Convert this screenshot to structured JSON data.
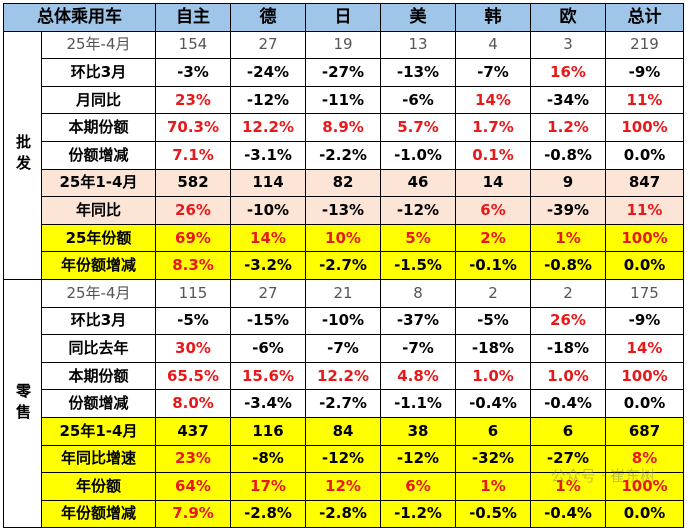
{
  "header": [
    "总体乘用车",
    "自主",
    "德",
    "日",
    "美",
    "韩",
    "欧",
    "总计"
  ],
  "groups": [
    {
      "label": "批发",
      "rows": [
        {
          "label": "25年-4月",
          "style": "plain",
          "cells": [
            [
              "154",
              "n"
            ],
            [
              "27",
              "n"
            ],
            [
              "19",
              "n"
            ],
            [
              "13",
              "n"
            ],
            [
              "4",
              "n"
            ],
            [
              "3",
              "n"
            ],
            [
              "219",
              "n"
            ]
          ]
        },
        {
          "label": "环比3月",
          "style": "",
          "cells": [
            [
              "-3%",
              "k"
            ],
            [
              "-24%",
              "k"
            ],
            [
              "-27%",
              "k"
            ],
            [
              "-13%",
              "k"
            ],
            [
              "-7%",
              "k"
            ],
            [
              "16%",
              "r"
            ],
            [
              "-9%",
              "k"
            ]
          ]
        },
        {
          "label": "月同比",
          "style": "",
          "cells": [
            [
              "23%",
              "r"
            ],
            [
              "-12%",
              "k"
            ],
            [
              "-11%",
              "k"
            ],
            [
              "-6%",
              "k"
            ],
            [
              "14%",
              "r"
            ],
            [
              "-34%",
              "k"
            ],
            [
              "11%",
              "r"
            ]
          ]
        },
        {
          "label": "本期份额",
          "style": "",
          "cells": [
            [
              "70.3%",
              "r"
            ],
            [
              "12.2%",
              "r"
            ],
            [
              "8.9%",
              "r"
            ],
            [
              "5.7%",
              "r"
            ],
            [
              "1.7%",
              "r"
            ],
            [
              "1.2%",
              "r"
            ],
            [
              "100%",
              "r"
            ]
          ]
        },
        {
          "label": "份额增减",
          "style": "",
          "cells": [
            [
              "7.1%",
              "r"
            ],
            [
              "-3.1%",
              "k"
            ],
            [
              "-2.2%",
              "k"
            ],
            [
              "-1.0%",
              "k"
            ],
            [
              "0.1%",
              "r"
            ],
            [
              "-0.8%",
              "k"
            ],
            [
              "0.0%",
              "k"
            ]
          ]
        },
        {
          "label": "25年1-4月",
          "style": "pink",
          "cells": [
            [
              "582",
              "k"
            ],
            [
              "114",
              "k"
            ],
            [
              "82",
              "k"
            ],
            [
              "46",
              "k"
            ],
            [
              "14",
              "k"
            ],
            [
              "9",
              "k"
            ],
            [
              "847",
              "k"
            ]
          ]
        },
        {
          "label": "年同比",
          "style": "pink",
          "cells": [
            [
              "26%",
              "r"
            ],
            [
              "-10%",
              "k"
            ],
            [
              "-13%",
              "k"
            ],
            [
              "-12%",
              "k"
            ],
            [
              "6%",
              "r"
            ],
            [
              "-39%",
              "k"
            ],
            [
              "11%",
              "r"
            ]
          ]
        },
        {
          "label": "25年份额",
          "style": "yellow",
          "cells": [
            [
              "69%",
              "r"
            ],
            [
              "14%",
              "r"
            ],
            [
              "10%",
              "r"
            ],
            [
              "5%",
              "r"
            ],
            [
              "2%",
              "r"
            ],
            [
              "1%",
              "r"
            ],
            [
              "100%",
              "r"
            ]
          ]
        },
        {
          "label": "年份额增减",
          "style": "yellow",
          "cells": [
            [
              "8.3%",
              "r"
            ],
            [
              "-3.2%",
              "k"
            ],
            [
              "-2.7%",
              "k"
            ],
            [
              "-1.5%",
              "k"
            ],
            [
              "-0.1%",
              "k"
            ],
            [
              "-0.8%",
              "k"
            ],
            [
              "0.0%",
              "k"
            ]
          ]
        }
      ]
    },
    {
      "label": "零售",
      "rows": [
        {
          "label": "25年-4月",
          "style": "plain",
          "cells": [
            [
              "115",
              "n"
            ],
            [
              "27",
              "n"
            ],
            [
              "21",
              "n"
            ],
            [
              "8",
              "n"
            ],
            [
              "2",
              "n"
            ],
            [
              "2",
              "n"
            ],
            [
              "175",
              "n"
            ]
          ]
        },
        {
          "label": "环比3月",
          "style": "",
          "cells": [
            [
              "-5%",
              "k"
            ],
            [
              "-15%",
              "k"
            ],
            [
              "-10%",
              "k"
            ],
            [
              "-37%",
              "k"
            ],
            [
              "-5%",
              "k"
            ],
            [
              "26%",
              "r"
            ],
            [
              "-9%",
              "k"
            ]
          ]
        },
        {
          "label": "同比去年",
          "style": "",
          "cells": [
            [
              "30%",
              "r"
            ],
            [
              "-6%",
              "k"
            ],
            [
              "-7%",
              "k"
            ],
            [
              "-7%",
              "k"
            ],
            [
              "-18%",
              "k"
            ],
            [
              "-18%",
              "k"
            ],
            [
              "14%",
              "r"
            ]
          ]
        },
        {
          "label": "本期份额",
          "style": "",
          "cells": [
            [
              "65.5%",
              "r"
            ],
            [
              "15.6%",
              "r"
            ],
            [
              "12.2%",
              "r"
            ],
            [
              "4.8%",
              "r"
            ],
            [
              "1.0%",
              "r"
            ],
            [
              "1.0%",
              "r"
            ],
            [
              "100%",
              "r"
            ]
          ]
        },
        {
          "label": "份额增减",
          "style": "",
          "cells": [
            [
              "8.0%",
              "r"
            ],
            [
              "-3.4%",
              "k"
            ],
            [
              "-2.7%",
              "k"
            ],
            [
              "-1.1%",
              "k"
            ],
            [
              "-0.4%",
              "k"
            ],
            [
              "-0.4%",
              "k"
            ],
            [
              "0.0%",
              "k"
            ]
          ]
        },
        {
          "label": "25年1-4月",
          "style": "yellow",
          "cells": [
            [
              "437",
              "k"
            ],
            [
              "116",
              "k"
            ],
            [
              "84",
              "k"
            ],
            [
              "38",
              "k"
            ],
            [
              "6",
              "k"
            ],
            [
              "6",
              "k"
            ],
            [
              "687",
              "k"
            ]
          ]
        },
        {
          "label": "年同比增速",
          "style": "yellow",
          "cells": [
            [
              "23%",
              "r"
            ],
            [
              "-8%",
              "k"
            ],
            [
              "-12%",
              "k"
            ],
            [
              "-12%",
              "k"
            ],
            [
              "-32%",
              "k"
            ],
            [
              "-27%",
              "k"
            ],
            [
              "8%",
              "r"
            ]
          ]
        },
        {
          "label": "年份额",
          "style": "yellow",
          "cells": [
            [
              "64%",
              "r"
            ],
            [
              "17%",
              "r"
            ],
            [
              "12%",
              "r"
            ],
            [
              "6%",
              "r"
            ],
            [
              "1%",
              "r"
            ],
            [
              "1%",
              "r"
            ],
            [
              "100%",
              "r"
            ]
          ]
        },
        {
          "label": "年份额增减",
          "style": "yellow",
          "cells": [
            [
              "7.9%",
              "r"
            ],
            [
              "-2.8%",
              "k"
            ],
            [
              "-2.8%",
              "k"
            ],
            [
              "-1.2%",
              "k"
            ],
            [
              "-0.5%",
              "k"
            ],
            [
              "-0.4%",
              "k"
            ],
            [
              "0.0%",
              "k"
            ]
          ]
        }
      ]
    }
  ],
  "watermark": "公众号 · 崔东树",
  "colors": {
    "header_bg": "#9fc5e8",
    "highlight_yellow": "#ffff00",
    "highlight_pink": "#fce4d6",
    "positive_red": "#e8191a"
  }
}
